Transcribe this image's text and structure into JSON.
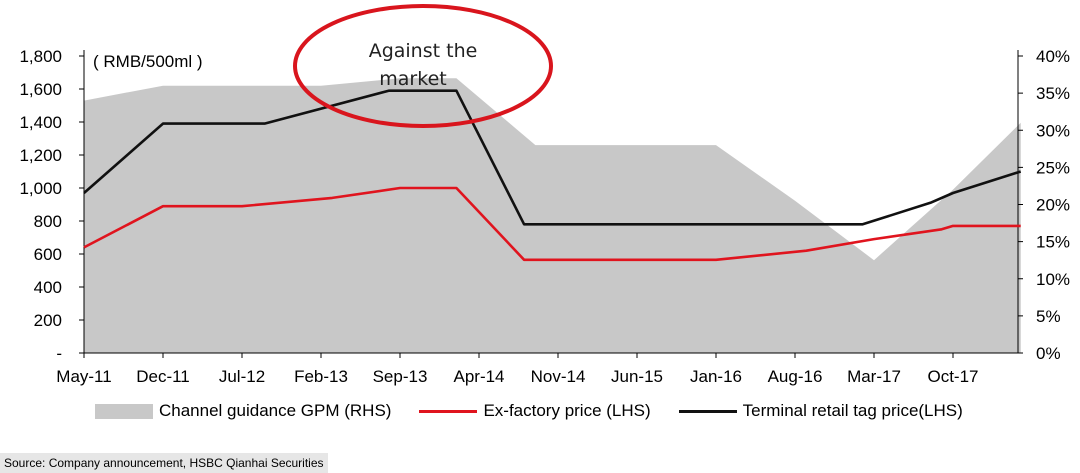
{
  "chart_data": {
    "type": "line",
    "unit_label": "( RMB/500ml )",
    "annotation": "Against the market",
    "x_labels": [
      "May-11",
      "Dec-11",
      "Jul-12",
      "Feb-13",
      "Sep-13",
      "Apr-14",
      "Nov-14",
      "Jun-15",
      "Jan-16",
      "Aug-16",
      "Mar-17",
      "Oct-17"
    ],
    "y_left": {
      "ticks": [
        "-",
        "200",
        "400",
        "600",
        "800",
        "1,000",
        "1,200",
        "1,400",
        "1,600",
        "1,800"
      ],
      "lim": [
        0,
        1800
      ]
    },
    "y_right": {
      "ticks": [
        "0%",
        "5%",
        "10%",
        "15%",
        "20%",
        "25%",
        "30%",
        "35%",
        "40%"
      ],
      "lim": [
        0,
        40
      ]
    },
    "series": [
      {
        "name": "Channel guidance GPM (RHS)",
        "type": "area",
        "axis": "right",
        "color": "#c8c8c8",
        "points": [
          [
            "May-11",
            34
          ],
          [
            "Dec-11",
            36
          ],
          [
            "Jul-12",
            36
          ],
          [
            "Feb-13",
            36
          ],
          [
            "Sep-13",
            37
          ],
          [
            "Feb-14",
            37
          ],
          [
            "Sep-14",
            28
          ],
          [
            "Jan-16",
            28
          ],
          [
            "Aug-16",
            20.5
          ],
          [
            "Mar-17",
            12.5
          ],
          [
            "Oct-17",
            22
          ],
          [
            "Apr-18",
            31
          ]
        ]
      },
      {
        "name": "Ex-factory price (LHS)",
        "type": "line",
        "axis": "left",
        "color": "#e0141e",
        "points": [
          [
            "May-11",
            640
          ],
          [
            "Dec-11",
            890
          ],
          [
            "Jul-12",
            890
          ],
          [
            "Mar-13",
            940
          ],
          [
            "Sep-13",
            1000
          ],
          [
            "Feb-14",
            1000
          ],
          [
            "Aug-14",
            565
          ],
          [
            "Jan-16",
            565
          ],
          [
            "Sep-16",
            620
          ],
          [
            "Mar-17",
            690
          ],
          [
            "Sep-17",
            750
          ],
          [
            "Oct-17",
            770
          ],
          [
            "Apr-18",
            770
          ]
        ]
      },
      {
        "name": "Terminal retail tag price(LHS)",
        "type": "line",
        "axis": "left",
        "color": "#111111",
        "points": [
          [
            "May-11",
            970
          ],
          [
            "Dec-11",
            1390
          ],
          [
            "Jul-12",
            1390
          ],
          [
            "Sep-12",
            1390
          ],
          [
            "Aug-13",
            1590
          ],
          [
            "Feb-14",
            1590
          ],
          [
            "Aug-14",
            780
          ],
          [
            "Feb-17",
            780
          ],
          [
            "Aug-17",
            910
          ],
          [
            "Oct-17",
            970
          ],
          [
            "Apr-18",
            1100
          ]
        ]
      }
    ]
  },
  "legend": {
    "gpm": "Channel guidance GPM (RHS)",
    "ex_factory": "Ex-factory price (LHS)",
    "retail": "Terminal retail tag price(LHS)"
  },
  "source": "Source: Company announcement, HSBC Qianhai Securities"
}
